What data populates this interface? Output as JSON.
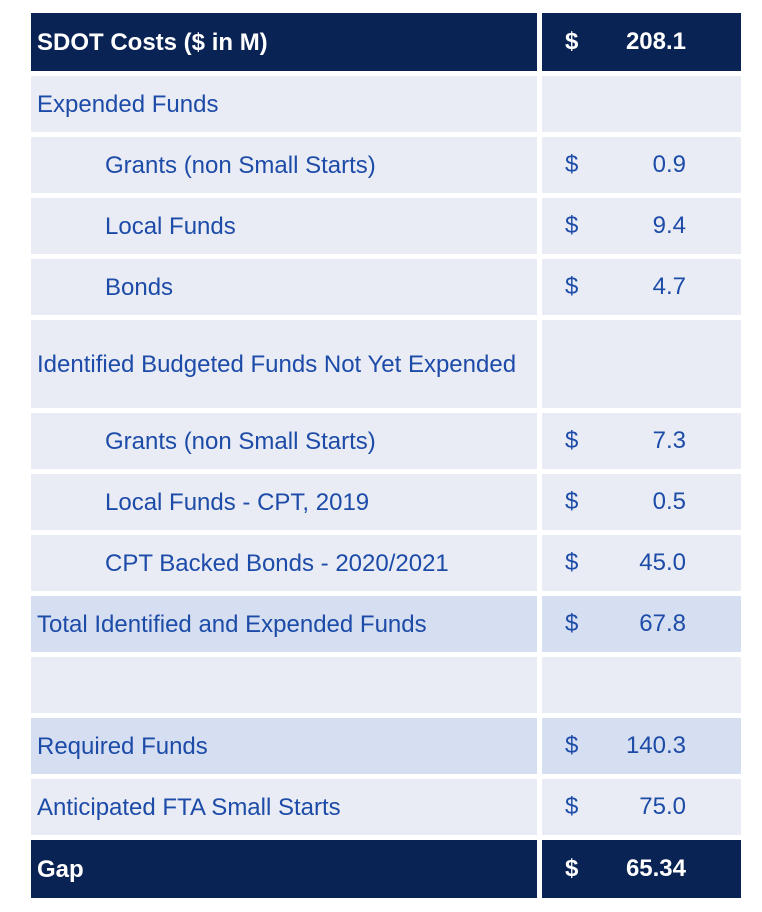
{
  "table": {
    "title": "SDOT Costs ($ in M)",
    "colors": {
      "navy": "#0a2355",
      "row_light": "#e9ecf5",
      "row_band": "#d5dff1",
      "text_blue": "#1d4ba8",
      "text_white": "#ffffff"
    },
    "rows": [
      {
        "label": "SDOT Costs ($ in M)",
        "currency": "$",
        "value": "208.1",
        "style": "header"
      },
      {
        "label": "Expended Funds",
        "currency": "",
        "value": "",
        "style": "item"
      },
      {
        "label": "Grants (non Small Starts)",
        "currency": "$",
        "value": "0.9",
        "style": "subitem"
      },
      {
        "label": "Local Funds",
        "currency": "$",
        "value": "9.4",
        "style": "subitem"
      },
      {
        "label": "Bonds",
        "currency": "$",
        "value": "4.7",
        "style": "subitem"
      },
      {
        "label": "Identified Budgeted Funds Not Yet Expended",
        "currency": "",
        "value": "",
        "style": "item tall"
      },
      {
        "label": "Grants (non Small Starts)",
        "currency": "$",
        "value": "7.3",
        "style": "subitem"
      },
      {
        "label": "Local Funds - CPT, 2019",
        "currency": "$",
        "value": "0.5",
        "style": "subitem"
      },
      {
        "label": "CPT Backed Bonds - 2020/2021",
        "currency": "$",
        "value": "45.0",
        "style": "subitem"
      },
      {
        "label": "Total Identified and Expended Funds",
        "currency": "$",
        "value": "67.8",
        "style": "band"
      },
      {
        "label": "",
        "currency": "",
        "value": "",
        "style": "item"
      },
      {
        "label": "Required Funds",
        "currency": "$",
        "value": "140.3",
        "style": "band"
      },
      {
        "label": "Anticipated FTA Small Starts",
        "currency": "$",
        "value": "75.0",
        "style": "item"
      },
      {
        "label": "Gap",
        "currency": "$",
        "value": "65.34",
        "style": "footer"
      }
    ]
  }
}
